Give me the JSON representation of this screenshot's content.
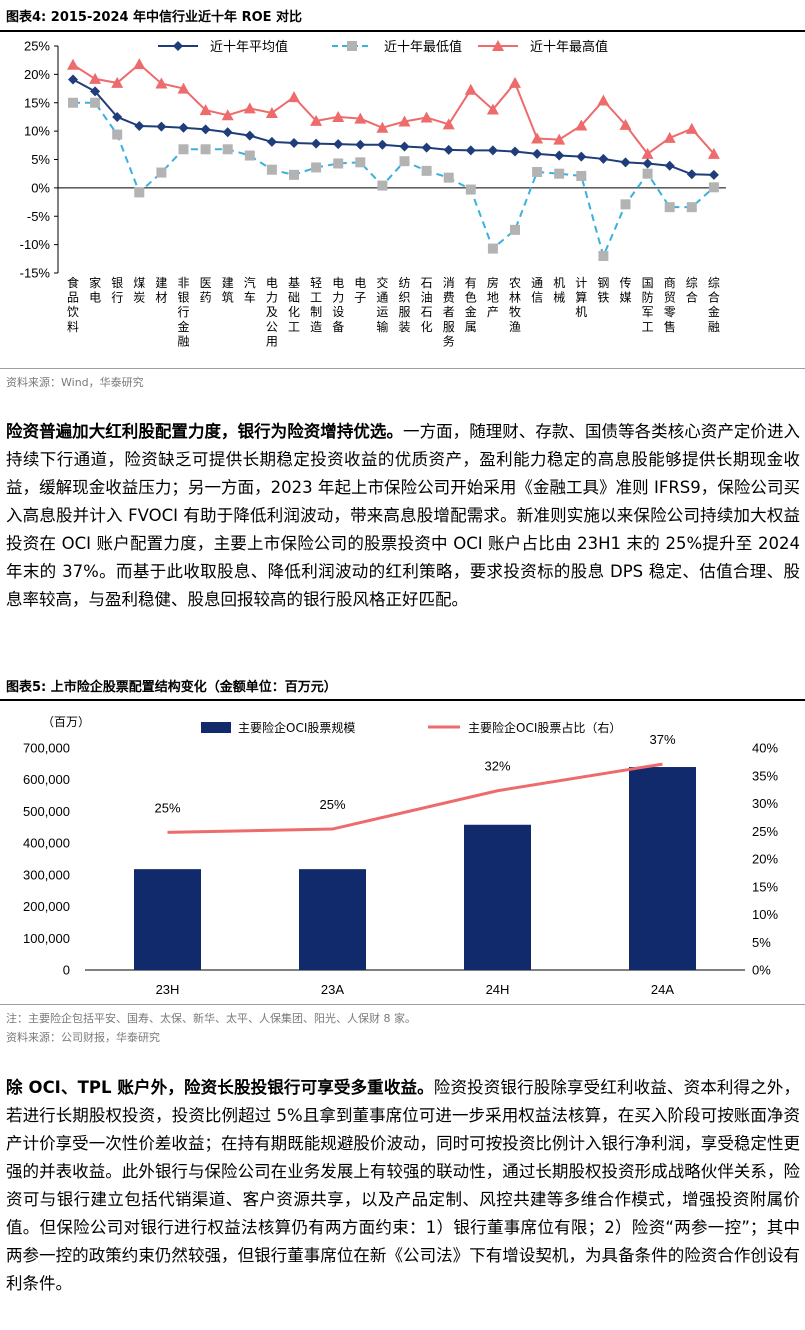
{
  "figure4": {
    "title": "图表4:  2015-2024 年中信行业近十年 ROE 对比",
    "source": "资料来源：Wind，华泰研究",
    "chart_data": {
      "type": "line",
      "title": "",
      "ylim": [
        -15,
        25
      ],
      "y_ticks": [
        "25%",
        "20%",
        "15%",
        "10%",
        "5%",
        "0%",
        "-5%",
        "-10%",
        "-15%"
      ],
      "legend_position": "top",
      "categories": [
        "食品饮料",
        "家电",
        "银行",
        "煤炭",
        "建材",
        "非银行金融",
        "医药",
        "建筑",
        "汽车",
        "电力及公用",
        "基础化工",
        "轻工制造",
        "电力设备",
        "电子",
        "交通运输",
        "纺织服装",
        "石油石化",
        "消费者服务",
        "有色金属",
        "房地产",
        "农林牧渔",
        "通信",
        "机械",
        "计算机",
        "钢铁",
        "传媒",
        "国防军工",
        "商贸零售",
        "综合",
        "综合金融"
      ],
      "series": [
        {
          "name": "近十年平均值",
          "color": "#1f3d7a",
          "style": "solid",
          "marker": "diamond",
          "values": [
            19.1,
            17.0,
            12.5,
            10.9,
            10.8,
            10.6,
            10.3,
            9.8,
            9.2,
            8.1,
            7.9,
            7.8,
            7.7,
            7.6,
            7.6,
            7.3,
            7.1,
            6.7,
            6.6,
            6.6,
            6.4,
            6.0,
            5.7,
            5.5,
            5.1,
            4.5,
            4.3,
            3.9,
            2.4,
            2.3
          ]
        },
        {
          "name": "近十年最低值",
          "color": "#b3b3b3",
          "line_color": "#38b0e0",
          "style": "dashed",
          "marker": "square",
          "values": [
            15.0,
            15.0,
            9.4,
            -0.8,
            2.7,
            6.8,
            6.8,
            6.8,
            5.7,
            3.2,
            2.3,
            3.6,
            4.3,
            4.5,
            0.4,
            4.7,
            3.0,
            1.8,
            -0.3,
            -10.7,
            -7.4,
            2.8,
            2.5,
            2.1,
            -12.0,
            -2.9,
            2.5,
            -3.4,
            -3.4,
            0.1
          ]
        },
        {
          "name": "近十年最高值",
          "color": "#ee6b6b",
          "style": "solid",
          "marker": "triangle",
          "values": [
            21.7,
            19.2,
            18.5,
            21.8,
            18.4,
            17.5,
            13.7,
            12.8,
            14.0,
            13.2,
            16.0,
            11.8,
            12.5,
            12.2,
            10.6,
            11.7,
            12.4,
            11.2,
            17.3,
            13.8,
            18.5,
            8.7,
            8.5,
            11.0,
            15.4,
            11.1,
            6.0,
            8.8,
            10.4,
            6.0
          ]
        }
      ]
    }
  },
  "para1": {
    "lead": "险资普遍加大红利股配置力度，银行为险资增持优选。",
    "body": "一方面，随理财、存款、国债等各类核心资产定价进入持续下行通道，险资缺乏可提供长期稳定投资收益的优质资产，盈利能力稳定的高息股能够提供长期现金收益，缓解现金收益压力；另一方面，2023 年起上市保险公司开始采用《金融工具》准则 IFRS9，保险公司买入高息股并计入 FVOCI 有助于降低利润波动，带来高息股增配需求。新准则实施以来保险公司持续加大权益投资在 OCI 账户配置力度，主要上市保险公司的股票投资中 OCI 账户占比由 23H1 末的 25%提升至 2024 年末的 37%。而基于此收取股息、降低利润波动的红利策略，要求投资标的股息 DPS 稳定、估值合理、股息率较高，与盈利稳健、股息回报较高的银行股风格正好匹配。"
  },
  "figure5": {
    "title": "图表5:  上市险企股票配置结构变化（金额单位：百万元）",
    "note": "注：主要险企包括平安、国寿、太保、新华、太平、人保集团、阳光、人保财 8 家。",
    "source": "资料来源：公司财报，华泰研究",
    "chart_data": {
      "type": "bar",
      "title": "",
      "y_unit": "（百万）",
      "categories": [
        "23H",
        "23A",
        "24H",
        "24A"
      ],
      "ylim": [
        0,
        700000
      ],
      "y2lim": [
        0,
        40
      ],
      "y_ticks": [
        "700,000",
        "600,000",
        "500,000",
        "400,000",
        "300,000",
        "200,000",
        "100,000",
        "0"
      ],
      "y2_ticks": [
        "40%",
        "35%",
        "30%",
        "25%",
        "20%",
        "15%",
        "10%",
        "5%",
        "0%"
      ],
      "legend_position": "top",
      "series": [
        {
          "name": "主要险企OCI股票规模",
          "kind": "bar",
          "axis": "left",
          "color": "#102a6b",
          "values": [
            318000,
            318000,
            458000,
            640000
          ]
        },
        {
          "name": "主要险企OCI股票占比（右）",
          "kind": "line",
          "axis": "right",
          "color": "#ee6b6b",
          "values": [
            24.8,
            25.4,
            32.3,
            37.1
          ],
          "labels": [
            "25%",
            "25%",
            "32%",
            "37%"
          ]
        }
      ]
    }
  },
  "para2": {
    "lead": "除 OCI、TPL 账户外，险资长股投银行可享受多重收益。",
    "body": "险资投资银行股除享受红利收益、资本利得之外，若进行长期股权投资，投资比例超过 5%且拿到董事席位可进一步采用权益法核算，在买入阶段可按账面净资产计价享受一次性价差收益；在持有期既能规避股价波动，同时可按投资比例计入银行净利润，享受稳定性更强的并表收益。此外银行与保险公司在业务发展上有较强的联动性，通过长期股权投资形成战略伙伴关系，险资可与银行建立包括代销渠道、客户资源共享，以及产品定制、风控共建等多维合作模式，增强投资附属价值。但保险公司对银行进行权益法核算仍有两方面约束：1）银行董事席位有限；2）险资“两参一控”；其中两参一控的政策约束仍然较强，但银行董事席位在新《公司法》下有增设契机，为具备条件的险资合作创设有利条件。"
  }
}
